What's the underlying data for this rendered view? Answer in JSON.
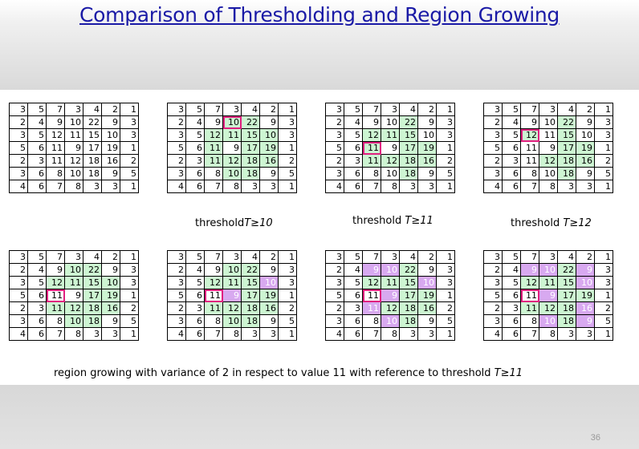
{
  "title": "Comparison of Thresholding and Region Growing",
  "page_number": "36",
  "matrix": [
    [
      "3",
      "5",
      "7",
      "3",
      "4",
      "2",
      "1"
    ],
    [
      "2",
      "4",
      "9",
      "10",
      "22",
      "9",
      "3"
    ],
    [
      "3",
      "5",
      "12",
      "11",
      "15",
      "10",
      "3"
    ],
    [
      "5",
      "6",
      "11",
      "9",
      "17",
      "19",
      "1"
    ],
    [
      "2",
      "3",
      "11",
      "12",
      "18",
      "16",
      "2"
    ],
    [
      "3",
      "6",
      "8",
      "10",
      "18",
      "9",
      "5"
    ],
    [
      "4",
      "6",
      "7",
      "8",
      "3",
      "3",
      "1"
    ]
  ],
  "captions": {
    "t10_pre": "threshold",
    "t10_sym": "T≥10",
    "t11_pre": "threshold",
    "t11_sym": "T≥11",
    "t12_pre": "threshold",
    "t12_sym": "T≥12",
    "rg_pre": "region growing with variance of 2 in respect to value 11 with reference to threshold",
    "rg_sym": "T≥11"
  },
  "colors": {
    "green": "#cdf5d2",
    "purple": "#d8a9f0",
    "seed_outline": "#e0207f",
    "title": "#1a1aa6"
  },
  "panels": [
    {
      "name": "original",
      "green": [],
      "purple": [],
      "seed": null
    },
    {
      "name": "threshold-10",
      "green": [
        "1,3",
        "1,4",
        "2,2",
        "2,3",
        "2,4",
        "2,5",
        "3,2",
        "3,4",
        "3,5",
        "4,2",
        "4,3",
        "4,4",
        "4,5",
        "5,3",
        "5,4"
      ],
      "purple": [],
      "seed": "1,3"
    },
    {
      "name": "threshold-11",
      "green": [
        "1,4",
        "2,2",
        "2,3",
        "2,4",
        "3,2",
        "3,4",
        "3,5",
        "4,2",
        "4,3",
        "4,4",
        "4,5",
        "5,4"
      ],
      "purple": [],
      "seed": "3,2"
    },
    {
      "name": "threshold-12",
      "green": [
        "1,4",
        "2,2",
        "2,4",
        "3,4",
        "3,5",
        "4,3",
        "4,4",
        "4,5",
        "5,4"
      ],
      "purple": [],
      "seed": "2,2"
    },
    {
      "name": "region-growing-1",
      "green": [
        "1,3",
        "1,4",
        "2,2",
        "2,3",
        "2,4",
        "2,5",
        "3,4",
        "3,5",
        "4,2",
        "4,3",
        "4,4",
        "4,5",
        "5,3",
        "5,4"
      ],
      "purple": [],
      "seed": "3,2"
    },
    {
      "name": "region-growing-2",
      "green": [
        "1,3",
        "1,4",
        "2,2",
        "2,3",
        "2,4",
        "3,4",
        "3,5",
        "4,2",
        "4,3",
        "4,4",
        "4,5",
        "5,3",
        "5,4"
      ],
      "purple": [
        "2,5",
        "3,3"
      ],
      "seed": "3,2"
    },
    {
      "name": "region-growing-3",
      "green": [
        "1,4",
        "2,2",
        "2,3",
        "2,4",
        "3,4",
        "3,5",
        "4,3",
        "4,4",
        "4,5",
        "5,4"
      ],
      "purple": [
        "1,2",
        "1,3",
        "2,5",
        "3,3",
        "4,2",
        "5,3"
      ],
      "seed": "3,2"
    },
    {
      "name": "region-growing-4",
      "green": [
        "1,4",
        "2,2",
        "2,3",
        "2,4",
        "3,4",
        "3,5",
        "4,2",
        "4,3",
        "4,4",
        "5,4"
      ],
      "purple": [
        "1,2",
        "1,3",
        "1,5",
        "2,5",
        "3,3",
        "4,5",
        "5,3",
        "5,5"
      ],
      "seed": "3,2"
    }
  ]
}
